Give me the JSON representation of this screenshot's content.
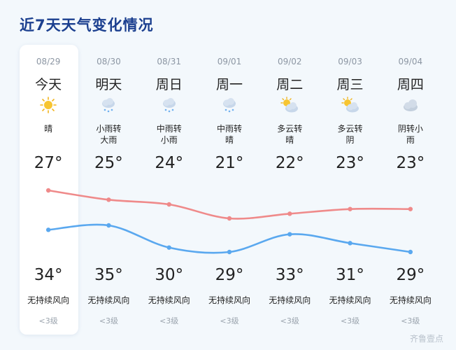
{
  "title": "近7天天气变化情况",
  "days": [
    {
      "date": "08/29",
      "name": "今天",
      "condition": "晴",
      "icon": "sunny-icon",
      "high": "27°",
      "low": "34°",
      "wind": "无持续风向",
      "level": "<3级",
      "high_value": 27,
      "low_value": 34
    },
    {
      "date": "08/30",
      "name": "明天",
      "condition": "小雨转\n大雨",
      "icon": "rain-icon",
      "high": "25°",
      "low": "35°",
      "wind": "无持续风向",
      "level": "<3级",
      "high_value": 25,
      "low_value": 35
    },
    {
      "date": "08/31",
      "name": "周日",
      "condition": "中雨转\n小雨",
      "icon": "rain-icon",
      "high": "24°",
      "low": "30°",
      "wind": "无持续风向",
      "level": "<3级",
      "high_value": 24,
      "low_value": 30
    },
    {
      "date": "09/01",
      "name": "周一",
      "condition": "中雨转\n晴",
      "icon": "rain-icon",
      "high": "21°",
      "low": "29°",
      "wind": "无持续风向",
      "level": "<3级",
      "high_value": 21,
      "low_value": 29
    },
    {
      "date": "09/02",
      "name": "周二",
      "condition": "多云转\n晴",
      "icon": "partly-cloudy-icon",
      "high": "22°",
      "low": "33°",
      "wind": "无持续风向",
      "level": "<3级",
      "high_value": 22,
      "low_value": 33
    },
    {
      "date": "09/03",
      "name": "周三",
      "condition": "多云转\n阴",
      "icon": "partly-cloudy-icon",
      "high": "23°",
      "low": "31°",
      "wind": "无持续风向",
      "level": "<3级",
      "high_value": 23,
      "low_value": 31
    },
    {
      "date": "09/04",
      "name": "周四",
      "condition": "阴转小\n雨",
      "icon": "cloudy-icon",
      "high": "23°",
      "low": "29°",
      "wind": "无持续风向",
      "level": "<3级",
      "high_value": 23,
      "low_value": 29
    }
  ],
  "colors": {
    "high_curve": "#ef8a8a",
    "low_curve": "#5aa8ef",
    "title": "#1b3f8f"
  },
  "watermark": "齐鲁壹点"
}
